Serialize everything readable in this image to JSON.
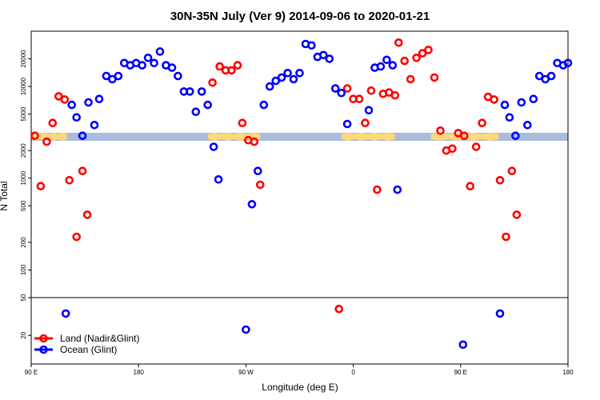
{
  "chart_data": {
    "type": "scatter",
    "title": "30N-35N July (Ver 9)   2014-09-06 to 2020-01-21",
    "xlabel": "Longitude (deg E)",
    "ylabel": "N Total",
    "x_ticks": [
      {
        "label": "90 E",
        "value": 90
      },
      {
        "label": "180",
        "value": 180
      },
      {
        "label": "90 W",
        "value": 270
      },
      {
        "label": "0",
        "value": 360
      },
      {
        "label": "90 E",
        "value": 450
      },
      {
        "label": "180",
        "value": 540
      }
    ],
    "xlim": [
      90,
      540
    ],
    "y_scale": "log",
    "y_ticks_upper": [
      "100",
      "200",
      "500",
      "1000",
      "2000",
      "5000",
      "10000",
      "20000"
    ],
    "y_ticks_lower": [
      "20",
      "50"
    ],
    "ylim_upper": [
      50,
      40000
    ],
    "ylim_lower": [
      10,
      50
    ],
    "grid": false,
    "legend_position": "bottom-left",
    "land_band_color": "#ffd87a",
    "ocean_band_color": "#a8bcdc",
    "land_ranges": [
      [
        90,
        120
      ],
      [
        238,
        282
      ],
      [
        350,
        395
      ],
      [
        425,
        482
      ]
    ],
    "series": [
      {
        "name": "Land (Nadir&Glint)",
        "color": "#ff0000",
        "points": [
          [
            93,
            2900
          ],
          [
            98,
            820
          ],
          [
            103,
            2500
          ],
          [
            108,
            4000
          ],
          [
            113,
            7800
          ],
          [
            118,
            7200
          ],
          [
            122,
            950
          ],
          [
            128,
            230
          ],
          [
            133,
            1200
          ],
          [
            137,
            400
          ],
          [
            242,
            11000
          ],
          [
            248,
            16500
          ],
          [
            253,
            15000
          ],
          [
            258,
            15000
          ],
          [
            263,
            17000
          ],
          [
            267,
            4000
          ],
          [
            272,
            2600
          ],
          [
            277,
            2500
          ],
          [
            282,
            850
          ],
          [
            348,
            38
          ],
          [
            355,
            9500
          ],
          [
            360,
            7300
          ],
          [
            365,
            7300
          ],
          [
            370,
            4000
          ],
          [
            375,
            9000
          ],
          [
            380,
            750
          ],
          [
            385,
            8300
          ],
          [
            390,
            8600
          ],
          [
            395,
            8000
          ],
          [
            398,
            30000
          ],
          [
            403,
            19000
          ],
          [
            408,
            12000
          ],
          [
            413,
            20500
          ],
          [
            418,
            23000
          ],
          [
            423,
            25000
          ],
          [
            428,
            12500
          ],
          [
            433,
            3300
          ],
          [
            438,
            2000
          ],
          [
            443,
            2100
          ],
          [
            448,
            3100
          ],
          [
            453,
            2900
          ],
          [
            458,
            820
          ],
          [
            463,
            2200
          ],
          [
            468,
            4000
          ],
          [
            473,
            7700
          ],
          [
            478,
            7200
          ],
          [
            483,
            950
          ],
          [
            488,
            230
          ],
          [
            493,
            1200
          ],
          [
            497,
            400
          ]
        ]
      },
      {
        "name": "Ocean (Glint)",
        "color": "#0000ff",
        "points": [
          [
            119,
            34
          ],
          [
            124,
            6300
          ],
          [
            128,
            4600
          ],
          [
            133,
            2900
          ],
          [
            138,
            6700
          ],
          [
            143,
            3800
          ],
          [
            147,
            7300
          ],
          [
            153,
            13000
          ],
          [
            158,
            12000
          ],
          [
            163,
            13000
          ],
          [
            168,
            18000
          ],
          [
            173,
            17000
          ],
          [
            178,
            18000
          ],
          [
            183,
            17000
          ],
          [
            188,
            20500
          ],
          [
            193,
            18000
          ],
          [
            198,
            24000
          ],
          [
            203,
            17000
          ],
          [
            208,
            16000
          ],
          [
            213,
            13000
          ],
          [
            218,
            8800
          ],
          [
            223,
            8800
          ],
          [
            228,
            5300
          ],
          [
            233,
            8800
          ],
          [
            238,
            6300
          ],
          [
            243,
            2200
          ],
          [
            247,
            970
          ],
          [
            270,
            23
          ],
          [
            275,
            520
          ],
          [
            280,
            1200
          ],
          [
            285,
            6300
          ],
          [
            290,
            10000
          ],
          [
            295,
            11500
          ],
          [
            300,
            12500
          ],
          [
            305,
            14000
          ],
          [
            310,
            12000
          ],
          [
            315,
            14000
          ],
          [
            320,
            29000
          ],
          [
            325,
            28000
          ],
          [
            330,
            21000
          ],
          [
            335,
            22000
          ],
          [
            340,
            20000
          ],
          [
            345,
            9500
          ],
          [
            350,
            8500
          ],
          [
            355,
            3900
          ],
          [
            373,
            5500
          ],
          [
            378,
            16000
          ],
          [
            383,
            16500
          ],
          [
            388,
            19500
          ],
          [
            393,
            17000
          ],
          [
            397,
            750
          ],
          [
            452,
            16
          ],
          [
            483,
            34
          ],
          [
            487,
            6300
          ],
          [
            491,
            4600
          ],
          [
            496,
            2900
          ],
          [
            501,
            6700
          ],
          [
            506,
            3800
          ],
          [
            511,
            7300
          ],
          [
            516,
            13000
          ],
          [
            521,
            12000
          ],
          [
            526,
            13000
          ],
          [
            531,
            18000
          ],
          [
            536,
            17000
          ],
          [
            540,
            18000
          ]
        ]
      }
    ]
  }
}
